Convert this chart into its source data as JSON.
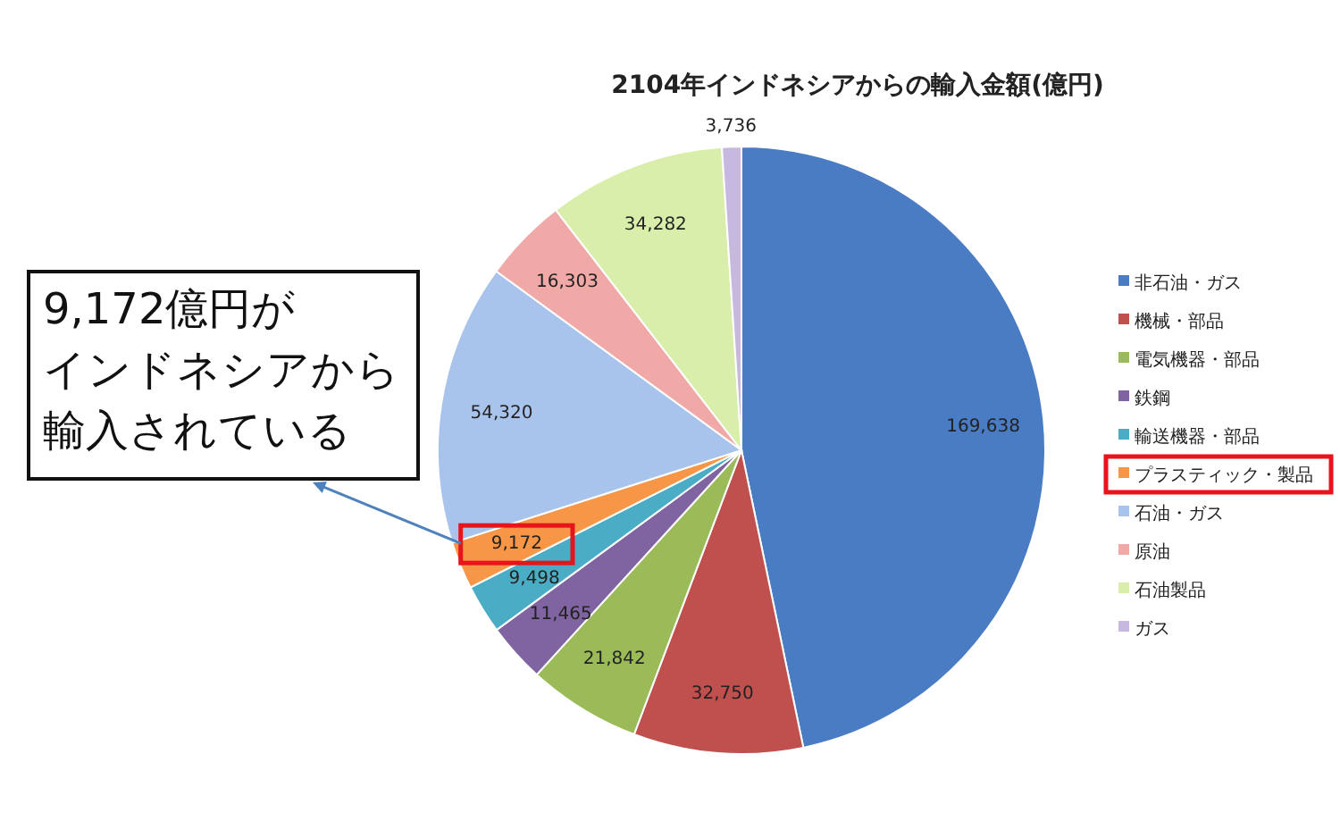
{
  "chart_data": {
    "type": "pie",
    "title": "2104年インドネシアからの輸入金額(億円)",
    "categories": [
      "非石油・ガス",
      "機械・部品",
      "電気機器・部品",
      "鉄鋼",
      "輸送機器・部品",
      "プラスティック・製品",
      "石油・ガス",
      "原油",
      "石油製品",
      "ガス"
    ],
    "values": [
      169638,
      32750,
      21842,
      11465,
      9498,
      9172,
      54320,
      16303,
      34282,
      3736
    ],
    "colors": [
      "#4a7cc4",
      "#c0504d",
      "#9bbb59",
      "#8064a2",
      "#4bacc6",
      "#f79646",
      "#a9c4ec",
      "#f0a9a7",
      "#d9eeaa",
      "#c7b8e0"
    ],
    "value_labels": [
      "169,638",
      "32,750",
      "21,842",
      "11,465",
      "9,498",
      "9,172",
      "54,320",
      "16,303",
      "34,282",
      "3,736"
    ],
    "legend": "right",
    "annotations": [
      "9,172億円が",
      "インドネシアから",
      "輸入されている"
    ]
  }
}
